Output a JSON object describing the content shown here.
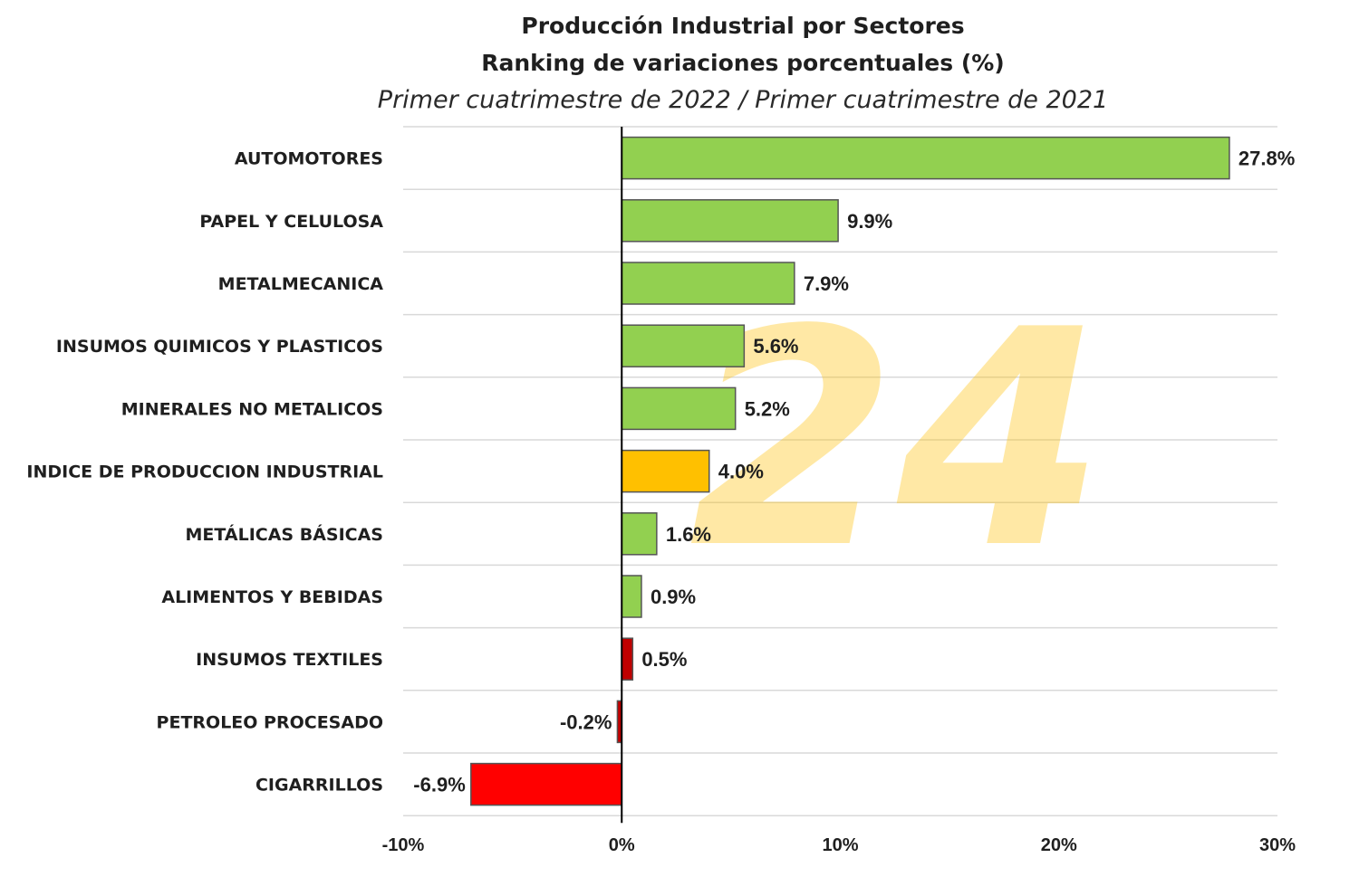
{
  "chart_data": {
    "type": "bar",
    "orientation": "horizontal",
    "title": "Producción Industrial por Sectores",
    "title2": "Ranking de variaciones porcentuales (%)",
    "subtitle": "Primer cuatrimestre de 2022 / Primer cuatrimestre de 2021",
    "categories": [
      "AUTOMOTORES",
      "PAPEL Y CELULOSA",
      "METALMECANICA",
      "INSUMOS QUIMICOS Y PLASTICOS",
      "MINERALES NO METALICOS",
      "INDICE DE PRODUCCION INDUSTRIAL",
      "METÁLICAS BÁSICAS",
      "ALIMENTOS Y BEBIDAS",
      "INSUMOS TEXTILES",
      "PETROLEO PROCESADO",
      "CIGARRILLOS"
    ],
    "values": [
      27.8,
      9.9,
      7.9,
      5.6,
      5.2,
      4.0,
      1.6,
      0.9,
      0.5,
      -0.2,
      -6.9
    ],
    "value_labels": [
      "27.8%",
      "9.9%",
      "7.9%",
      "5.6%",
      "5.2%",
      "4.0%",
      "1.6%",
      "0.9%",
      "0.5%",
      "-0.2%",
      "-6.9%"
    ],
    "bar_colors": [
      "#92d050",
      "#92d050",
      "#92d050",
      "#92d050",
      "#92d050",
      "#ffc000",
      "#92d050",
      "#92d050",
      "#c00000",
      "#c00000",
      "#ff0000"
    ],
    "xlim": [
      -10,
      30
    ],
    "x_ticks": [
      -10,
      0,
      10,
      20,
      30
    ],
    "x_tick_labels": [
      "-10%",
      "0%",
      "10%",
      "20%",
      "30%"
    ],
    "grid": "horizontal",
    "legend": "none"
  },
  "watermark": {
    "text": "24",
    "color": "#ffc000"
  }
}
